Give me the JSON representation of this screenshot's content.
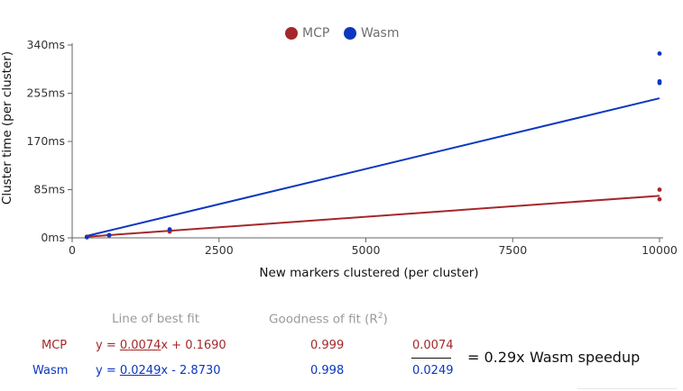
{
  "colors": {
    "mcp": "#a4282a",
    "wasm": "#0b37c0",
    "axis": "#666666"
  },
  "chart_data": {
    "type": "scatter",
    "xlabel": "New markers clustered (per cluster)",
    "ylabel": "Cluster time (per cluster)",
    "xlim": [
      0,
      10000
    ],
    "ylim": [
      0,
      340
    ],
    "x_ticks": [
      0,
      2500,
      5000,
      7500,
      10000
    ],
    "x_tick_labels": [
      "0",
      "2500",
      "5000",
      "7500",
      "10000"
    ],
    "y_ticks": [
      0,
      85,
      170,
      255,
      340
    ],
    "y_tick_labels": [
      "0ms",
      "85ms",
      "170ms",
      "255ms",
      "340ms"
    ],
    "legend_position": "top-center",
    "grid": false,
    "series": [
      {
        "name": "MCP",
        "color": "#a4282a",
        "points": [
          [
            250,
            2
          ],
          [
            630,
            4
          ],
          [
            1660,
            11
          ],
          [
            10000,
            68
          ],
          [
            10000,
            85
          ]
        ],
        "fit": {
          "slope": 0.0074,
          "intercept": 0.169
        }
      },
      {
        "name": "Wasm",
        "color": "#0b37c0",
        "points": [
          [
            250,
            1
          ],
          [
            630,
            5
          ],
          [
            1660,
            15
          ],
          [
            10000,
            273
          ],
          [
            10000,
            276
          ],
          [
            10000,
            325
          ]
        ],
        "fit": {
          "slope": 0.0249,
          "intercept": -2.873
        }
      }
    ]
  },
  "fit_table": {
    "header_fit": "Line of best fit",
    "header_goodness": "Goodness of fit (R",
    "header_goodness_sup": "2",
    "header_goodness_close": ")",
    "rows": [
      {
        "name": "MCP",
        "eq_prefix": "y = ",
        "slope": "0.0074",
        "eq_suffix": "x + 0.1690",
        "r2": "0.999"
      },
      {
        "name": "Wasm",
        "eq_prefix": "y = ",
        "slope": "0.0249",
        "eq_suffix": "x - 2.8730",
        "r2": "0.998"
      }
    ],
    "ratio_numerator": "0.0074",
    "ratio_denominator": "0.0249",
    "ratio_result": "= 0.29x",
    "ratio_caption": "Wasm speedup"
  }
}
